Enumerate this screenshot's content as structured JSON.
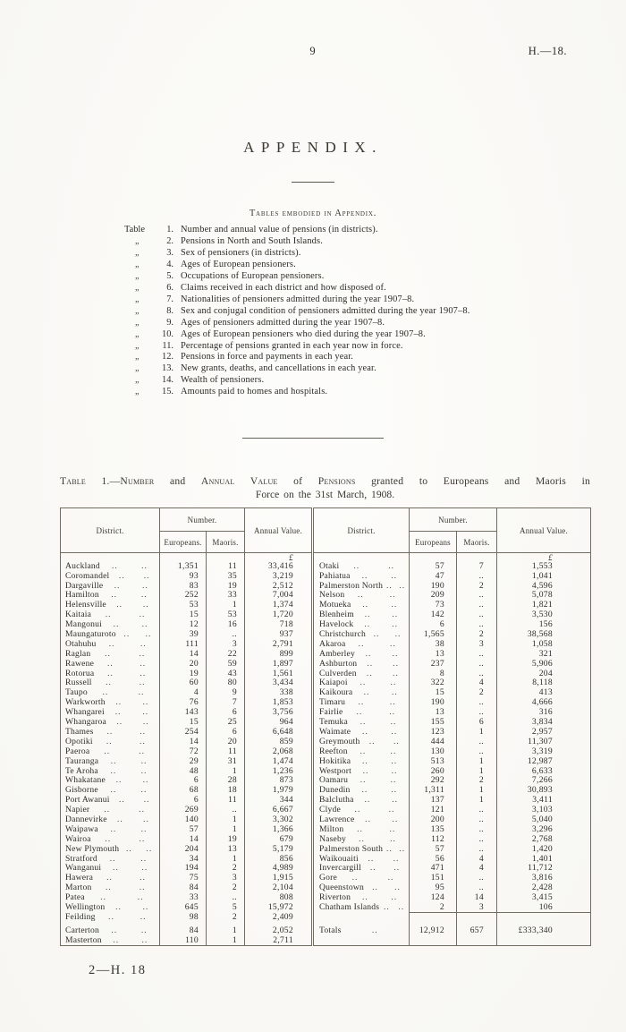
{
  "page": {
    "number": "9",
    "doc_ref": "H.—18.",
    "footer_signature": "2—H. 18"
  },
  "appendix": {
    "title": "APPENDIX.",
    "list_heading": "Tables embodied in Appendix.",
    "items": [
      {
        "pre": "Table",
        "no": "1.",
        "text": "Number and annual value of pensions (in districts)."
      },
      {
        "pre": "„",
        "no": "2.",
        "text": "Pensions in North and South Islands."
      },
      {
        "pre": "„",
        "no": "3.",
        "text": "Sex of pensioners (in districts)."
      },
      {
        "pre": "„",
        "no": "4.",
        "text": "Ages of European pensioners."
      },
      {
        "pre": "„",
        "no": "5.",
        "text": "Occupations of European pensioners."
      },
      {
        "pre": "„",
        "no": "6.",
        "text": "Claims received in each district and how disposed of."
      },
      {
        "pre": "„",
        "no": "7.",
        "text": "Nationalities of pensioners admitted during the year 1907–8."
      },
      {
        "pre": "„",
        "no": "8.",
        "text": "Sex and conjugal condition of pensioners admitted during the year 1907–8."
      },
      {
        "pre": "„",
        "no": "9.",
        "text": "Ages of pensioners admitted during the year 1907–8."
      },
      {
        "pre": "„",
        "no": "10.",
        "text": "Ages of European pensioners who died during the year 1907–8."
      },
      {
        "pre": "„",
        "no": "11.",
        "text": "Percentage of pensions granted in each year now in force."
      },
      {
        "pre": "„",
        "no": "12.",
        "text": "Pensions in force and payments in each year."
      },
      {
        "pre": "„",
        "no": "13.",
        "text": "New grants, deaths, and cancellations in each year."
      },
      {
        "pre": "„",
        "no": "14.",
        "text": "Wealth of pensioners."
      },
      {
        "pre": "„",
        "no": "15.",
        "text": "Amounts paid to homes and hospitals."
      }
    ]
  },
  "table1": {
    "title_line1_segments": [
      {
        "t": "Table 1.",
        "sc": true
      },
      {
        "t": "—"
      },
      {
        "t": "Number",
        "sc": true
      },
      {
        "t": " and "
      },
      {
        "t": "Annual Value",
        "sc": true
      },
      {
        "t": " of "
      },
      {
        "t": "Pensions",
        "sc": true
      },
      {
        "t": " granted to Europeans and Maoris in"
      }
    ],
    "title_line2": "Force on the 31st March, 1908.",
    "headers": {
      "district_left": "District.",
      "number_left": "Number.",
      "europeans_left": "Europeans.",
      "maoris_left": "Maoris.",
      "annual_left": "Annual Value.",
      "district_right": "District.",
      "number_right": "Number.",
      "europeans_right": "Europeans",
      "maoris_right": "Maoris.",
      "annual_right": "Annual Value."
    },
    "currency_symbol": "£",
    "leader": "..",
    "left_rows": [
      {
        "d": "Auckland",
        "e": "1,351",
        "m": "11",
        "a": "33,416"
      },
      {
        "d": "Coromandel",
        "e": "93",
        "m": "35",
        "a": "3,219"
      },
      {
        "d": "Dargaville",
        "e": "83",
        "m": "19",
        "a": "2,512"
      },
      {
        "d": "Hamilton",
        "e": "252",
        "m": "33",
        "a": "7,004"
      },
      {
        "d": "Helensville",
        "e": "53",
        "m": "1",
        "a": "1,374"
      },
      {
        "d": "Kaitaia",
        "e": "15",
        "m": "53",
        "a": "1,720"
      },
      {
        "d": "Mangonui",
        "e": "12",
        "m": "16",
        "a": "718"
      },
      {
        "d": "Maungaturoto",
        "e": "39",
        "m": "..",
        "a": "937"
      },
      {
        "d": "Otahuhu",
        "e": "111",
        "m": "3",
        "a": "2,791"
      },
      {
        "d": "Raglan",
        "e": "14",
        "m": "22",
        "a": "899"
      },
      {
        "d": "Rawene",
        "e": "20",
        "m": "59",
        "a": "1,897"
      },
      {
        "d": "Rotorua",
        "e": "19",
        "m": "43",
        "a": "1,561"
      },
      {
        "d": "Russell",
        "e": "60",
        "m": "80",
        "a": "3,434"
      },
      {
        "d": "Taupo",
        "e": "4",
        "m": "9",
        "a": "338"
      },
      {
        "d": "Warkworth",
        "e": "76",
        "m": "7",
        "a": "1,853"
      },
      {
        "d": "Whangarei",
        "e": "143",
        "m": "6",
        "a": "3,756"
      },
      {
        "d": "Whangaroa",
        "e": "15",
        "m": "25",
        "a": "964"
      },
      {
        "d": "Thames",
        "e": "254",
        "m": "6",
        "a": "6,648"
      },
      {
        "d": "Opotiki",
        "e": "14",
        "m": "20",
        "a": "859"
      },
      {
        "d": "Paeroa",
        "e": "72",
        "m": "11",
        "a": "2,068"
      },
      {
        "d": "Tauranga",
        "e": "29",
        "m": "31",
        "a": "1,474"
      },
      {
        "d": "Te Aroha",
        "e": "48",
        "m": "1",
        "a": "1,236"
      },
      {
        "d": "Whakatane",
        "e": "6",
        "m": "28",
        "a": "873"
      },
      {
        "d": "Gisborne",
        "e": "68",
        "m": "18",
        "a": "1,979"
      },
      {
        "d": "Port Awanui",
        "e": "6",
        "m": "11",
        "a": "344"
      },
      {
        "d": "Napier",
        "e": "269",
        "m": "..",
        "a": "6,667"
      },
      {
        "d": "Dannevirke",
        "e": "140",
        "m": "1",
        "a": "3,302"
      },
      {
        "d": "Waipawa",
        "e": "57",
        "m": "1",
        "a": "1,366"
      },
      {
        "d": "Wairoa",
        "e": "14",
        "m": "19",
        "a": "679"
      },
      {
        "d": "New Plymouth",
        "e": "204",
        "m": "13",
        "a": "5,179"
      },
      {
        "d": "Stratford",
        "e": "34",
        "m": "1",
        "a": "856"
      },
      {
        "d": "Wanganui",
        "e": "194",
        "m": "2",
        "a": "4,989"
      },
      {
        "d": "Hawera",
        "e": "75",
        "m": "3",
        "a": "1,915"
      },
      {
        "d": "Marton",
        "e": "84",
        "m": "2",
        "a": "2,104"
      },
      {
        "d": "Patea",
        "e": "33",
        "m": "..",
        "a": "808"
      },
      {
        "d": "Wellington",
        "e": "645",
        "m": "5",
        "a": "15,972"
      },
      {
        "d": "Feilding",
        "e": "98",
        "m": "2",
        "a": "2,409"
      },
      {
        "d": "Carterton",
        "e": "84",
        "m": "1",
        "a": "2,052"
      },
      {
        "d": "Masterton",
        "e": "110",
        "m": "1",
        "a": "2,711"
      }
    ],
    "right_rows": [
      {
        "d": "Otaki",
        "e": "57",
        "m": "7",
        "a": "1,553"
      },
      {
        "d": "Pahiatua",
        "e": "47",
        "m": "..",
        "a": "1,041"
      },
      {
        "d": "Palmerston North",
        "e": "190",
        "m": "2",
        "a": "4,596"
      },
      {
        "d": "Nelson",
        "e": "209",
        "m": "..",
        "a": "5,078"
      },
      {
        "d": "Motueka",
        "e": "73",
        "m": "..",
        "a": "1,821"
      },
      {
        "d": "Blenheim",
        "e": "142",
        "m": "..",
        "a": "3,530"
      },
      {
        "d": "Havelock",
        "e": "6",
        "m": "..",
        "a": "156"
      },
      {
        "d": "Christchurch",
        "e": "1,565",
        "m": "2",
        "a": "38,568"
      },
      {
        "d": "Akaroa",
        "e": "38",
        "m": "3",
        "a": "1,058"
      },
      {
        "d": "Amberley",
        "e": "13",
        "m": "..",
        "a": "321"
      },
      {
        "d": "Ashburton",
        "e": "237",
        "m": "..",
        "a": "5,906"
      },
      {
        "d": "Culverden",
        "e": "8",
        "m": "..",
        "a": "204"
      },
      {
        "d": "Kaiapoi",
        "e": "322",
        "m": "4",
        "a": "8,118"
      },
      {
        "d": "Kaikoura",
        "e": "15",
        "m": "2",
        "a": "413"
      },
      {
        "d": "Timaru",
        "e": "190",
        "m": "..",
        "a": "4,666"
      },
      {
        "d": "Fairlie",
        "e": "13",
        "m": "..",
        "a": "316"
      },
      {
        "d": "Temuka",
        "e": "155",
        "m": "6",
        "a": "3,834"
      },
      {
        "d": "Waimate",
        "e": "123",
        "m": "1",
        "a": "2,957"
      },
      {
        "d": "Greymouth",
        "e": "444",
        "m": "..",
        "a": "11,307"
      },
      {
        "d": "Reefton",
        "e": "130",
        "m": "..",
        "a": "3,319"
      },
      {
        "d": "Hokitika",
        "e": "513",
        "m": "1",
        "a": "12,987"
      },
      {
        "d": "Westport",
        "e": "260",
        "m": "1",
        "a": "6,633"
      },
      {
        "d": "Oamaru",
        "e": "292",
        "m": "2",
        "a": "7,266"
      },
      {
        "d": "Dunedin",
        "e": "1,311",
        "m": "1",
        "a": "30,893"
      },
      {
        "d": "Balclutha",
        "e": "137",
        "m": "1",
        "a": "3,411"
      },
      {
        "d": "Clyde",
        "e": "121",
        "m": "..",
        "a": "3,103"
      },
      {
        "d": "Lawrence",
        "e": "200",
        "m": "..",
        "a": "5,040"
      },
      {
        "d": "Milton",
        "e": "135",
        "m": "..",
        "a": "3,296"
      },
      {
        "d": "Naseby",
        "e": "112",
        "m": "..",
        "a": "2,768"
      },
      {
        "d": "Palmerston South",
        "e": "57",
        "m": "..",
        "a": "1,420"
      },
      {
        "d": "Waikouaiti",
        "e": "56",
        "m": "4",
        "a": "1,401"
      },
      {
        "d": "Invercargill",
        "e": "471",
        "m": "4",
        "a": "11,712"
      },
      {
        "d": "Gore",
        "e": "151",
        "m": "..",
        "a": "3,816"
      },
      {
        "d": "Queenstown",
        "e": "95",
        "m": "..",
        "a": "2,428"
      },
      {
        "d": "Riverton",
        "e": "124",
        "m": "14",
        "a": "3,415"
      },
      {
        "d": "Chatham Islands",
        "e": "2",
        "m": "3",
        "a": "106"
      }
    ],
    "totals": {
      "label": "Totals",
      "e": "12,912",
      "m": "657",
      "a": "£333,340"
    }
  }
}
